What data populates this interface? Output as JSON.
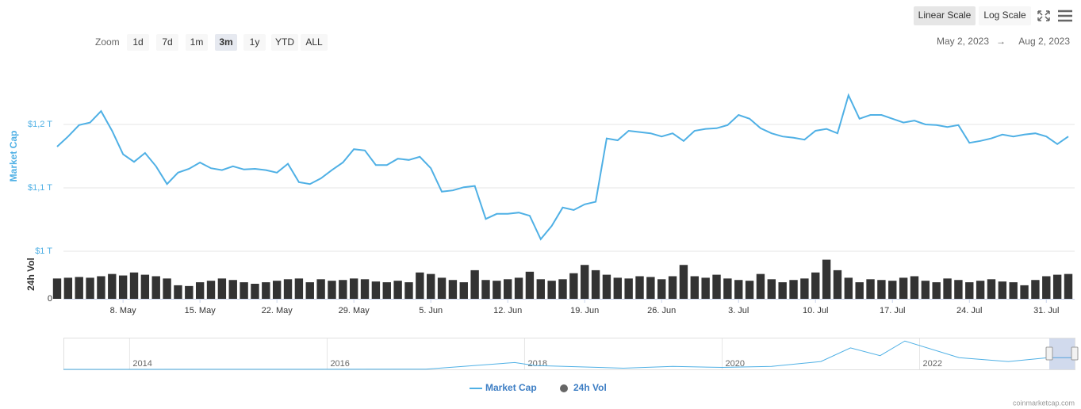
{
  "toolbar": {
    "zoom_label": "Zoom",
    "zoom_buttons": [
      "1d",
      "7d",
      "1m",
      "3m",
      "1y",
      "YTD",
      "ALL"
    ],
    "selected_zoom": "3m",
    "scale_buttons": [
      "Linear Scale",
      "Log Scale"
    ],
    "selected_scale": "Linear Scale",
    "date_from": "May 2, 2023",
    "date_separator": "→",
    "date_to": "Aug 2, 2023"
  },
  "chart_data": {
    "type": "line",
    "x": [
      "2023-05-02",
      "2023-05-03",
      "2023-05-04",
      "2023-05-05",
      "2023-05-06",
      "2023-05-07",
      "2023-05-08",
      "2023-05-09",
      "2023-05-10",
      "2023-05-11",
      "2023-05-12",
      "2023-05-13",
      "2023-05-14",
      "2023-05-15",
      "2023-05-16",
      "2023-05-17",
      "2023-05-18",
      "2023-05-19",
      "2023-05-20",
      "2023-05-21",
      "2023-05-22",
      "2023-05-23",
      "2023-05-24",
      "2023-05-25",
      "2023-05-26",
      "2023-05-27",
      "2023-05-28",
      "2023-05-29",
      "2023-05-30",
      "2023-05-31",
      "2023-06-01",
      "2023-06-02",
      "2023-06-03",
      "2023-06-04",
      "2023-06-05",
      "2023-06-06",
      "2023-06-07",
      "2023-06-08",
      "2023-06-09",
      "2023-06-10",
      "2023-06-11",
      "2023-06-12",
      "2023-06-13",
      "2023-06-14",
      "2023-06-15",
      "2023-06-16",
      "2023-06-17",
      "2023-06-18",
      "2023-06-19",
      "2023-06-20",
      "2023-06-21",
      "2023-06-22",
      "2023-06-23",
      "2023-06-24",
      "2023-06-25",
      "2023-06-26",
      "2023-06-27",
      "2023-06-28",
      "2023-06-29",
      "2023-06-30",
      "2023-07-01",
      "2023-07-02",
      "2023-07-03",
      "2023-07-04",
      "2023-07-05",
      "2023-07-06",
      "2023-07-07",
      "2023-07-08",
      "2023-07-09",
      "2023-07-10",
      "2023-07-11",
      "2023-07-12",
      "2023-07-13",
      "2023-07-14",
      "2023-07-15",
      "2023-07-16",
      "2023-07-17",
      "2023-07-18",
      "2023-07-19",
      "2023-07-20",
      "2023-07-21",
      "2023-07-22",
      "2023-07-23",
      "2023-07-24",
      "2023-07-25",
      "2023-07-26",
      "2023-07-27",
      "2023-07-28",
      "2023-07-29",
      "2023-07-30",
      "2023-07-31",
      "2023-08-01",
      "2023-08-02"
    ],
    "series": [
      {
        "name": "Market Cap",
        "color": "#4fb0e5",
        "values": [
          1.165,
          1.181,
          1.199,
          1.203,
          1.221,
          1.19,
          1.153,
          1.141,
          1.155,
          1.134,
          1.106,
          1.124,
          1.13,
          1.14,
          1.131,
          1.128,
          1.134,
          1.129,
          1.13,
          1.128,
          1.124,
          1.138,
          1.109,
          1.106,
          1.115,
          1.128,
          1.14,
          1.161,
          1.159,
          1.136,
          1.136,
          1.146,
          1.144,
          1.149,
          1.131,
          1.094,
          1.096,
          1.101,
          1.103,
          1.051,
          1.059,
          1.059,
          1.061,
          1.056,
          1.019,
          1.04,
          1.069,
          1.065,
          1.074,
          1.078,
          1.178,
          1.175,
          1.19,
          1.188,
          1.186,
          1.181,
          1.186,
          1.174,
          1.19,
          1.193,
          1.194,
          1.199,
          1.215,
          1.209,
          1.194,
          1.186,
          1.181,
          1.179,
          1.176,
          1.19,
          1.193,
          1.186,
          1.246,
          1.209,
          1.215,
          1.215,
          1.209,
          1.203,
          1.206,
          1.2,
          1.199,
          1.196,
          1.199,
          1.171,
          1.174,
          1.178,
          1.184,
          1.181,
          1.184,
          1.186,
          1.181,
          1.169,
          1.181
        ]
      },
      {
        "name": "24h Vol",
        "color": "#333333",
        "axis": "y2",
        "values": [
          27,
          28,
          29,
          28,
          30,
          33,
          31,
          35,
          32,
          30,
          27,
          18,
          17,
          22,
          24,
          27,
          25,
          22,
          20,
          22,
          24,
          26,
          27,
          22,
          26,
          24,
          25,
          27,
          26,
          23,
          22,
          24,
          22,
          35,
          33,
          28,
          25,
          22,
          38,
          25,
          24,
          26,
          28,
          36,
          26,
          24,
          26,
          34,
          45,
          38,
          32,
          28,
          27,
          30,
          29,
          26,
          30,
          45,
          30,
          28,
          32,
          27,
          25,
          24,
          33,
          26,
          22,
          25,
          27,
          35,
          52,
          38,
          28,
          22,
          26,
          25,
          24,
          28,
          30,
          24,
          22,
          27,
          25,
          22,
          24,
          26,
          23,
          22,
          18,
          25,
          30,
          32,
          33
        ]
      }
    ],
    "ylabel": "Market Cap",
    "y2label": "24h Vol",
    "ylim": [
      1,
      1.3
    ],
    "yticks": [
      {
        "value": 1,
        "label": "$1 T"
      },
      {
        "value": 1.1,
        "label": "$1,1 T"
      },
      {
        "value": 1.2,
        "label": "$1,2 T"
      }
    ],
    "y2lim": [
      0,
      60
    ],
    "y2ticks": [
      0
    ],
    "xticks": [
      {
        "value": "2023-05-08",
        "label": "8. May"
      },
      {
        "value": "2023-05-15",
        "label": "15. May"
      },
      {
        "value": "2023-05-22",
        "label": "22. May"
      },
      {
        "value": "2023-05-29",
        "label": "29. May"
      },
      {
        "value": "2023-06-05",
        "label": "5. Jun"
      },
      {
        "value": "2023-06-12",
        "label": "12. Jun"
      },
      {
        "value": "2023-06-19",
        "label": "19. Jun"
      },
      {
        "value": "2023-06-26",
        "label": "26. Jun"
      },
      {
        "value": "2023-07-03",
        "label": "3. Jul"
      },
      {
        "value": "2023-07-10",
        "label": "10. Jul"
      },
      {
        "value": "2023-07-17",
        "label": "17. Jul"
      },
      {
        "value": "2023-07-24",
        "label": "24. Jul"
      },
      {
        "value": "2023-07-31",
        "label": "31. Jul"
      }
    ],
    "grid": true,
    "credit": "coinmarketcap.com",
    "navigator": {
      "x": [
        2013.33,
        2017,
        2017.9,
        2018.1,
        2019,
        2019.5,
        2020,
        2020.5,
        2021,
        2021.3,
        2021.6,
        2021.85,
        2022.4,
        2022.9,
        2023.3,
        2023.57
      ],
      "values": [
        0.001,
        0.02,
        0.7,
        0.4,
        0.12,
        0.3,
        0.2,
        0.3,
        0.8,
        2.2,
        1.4,
        2.9,
        1.2,
        0.8,
        1.2,
        1.2
      ],
      "xlim": [
        2013.33,
        2023.57
      ],
      "ylim": [
        0,
        3
      ],
      "xticks": [
        2014,
        2016,
        2018,
        2020,
        2022
      ]
    }
  }
}
